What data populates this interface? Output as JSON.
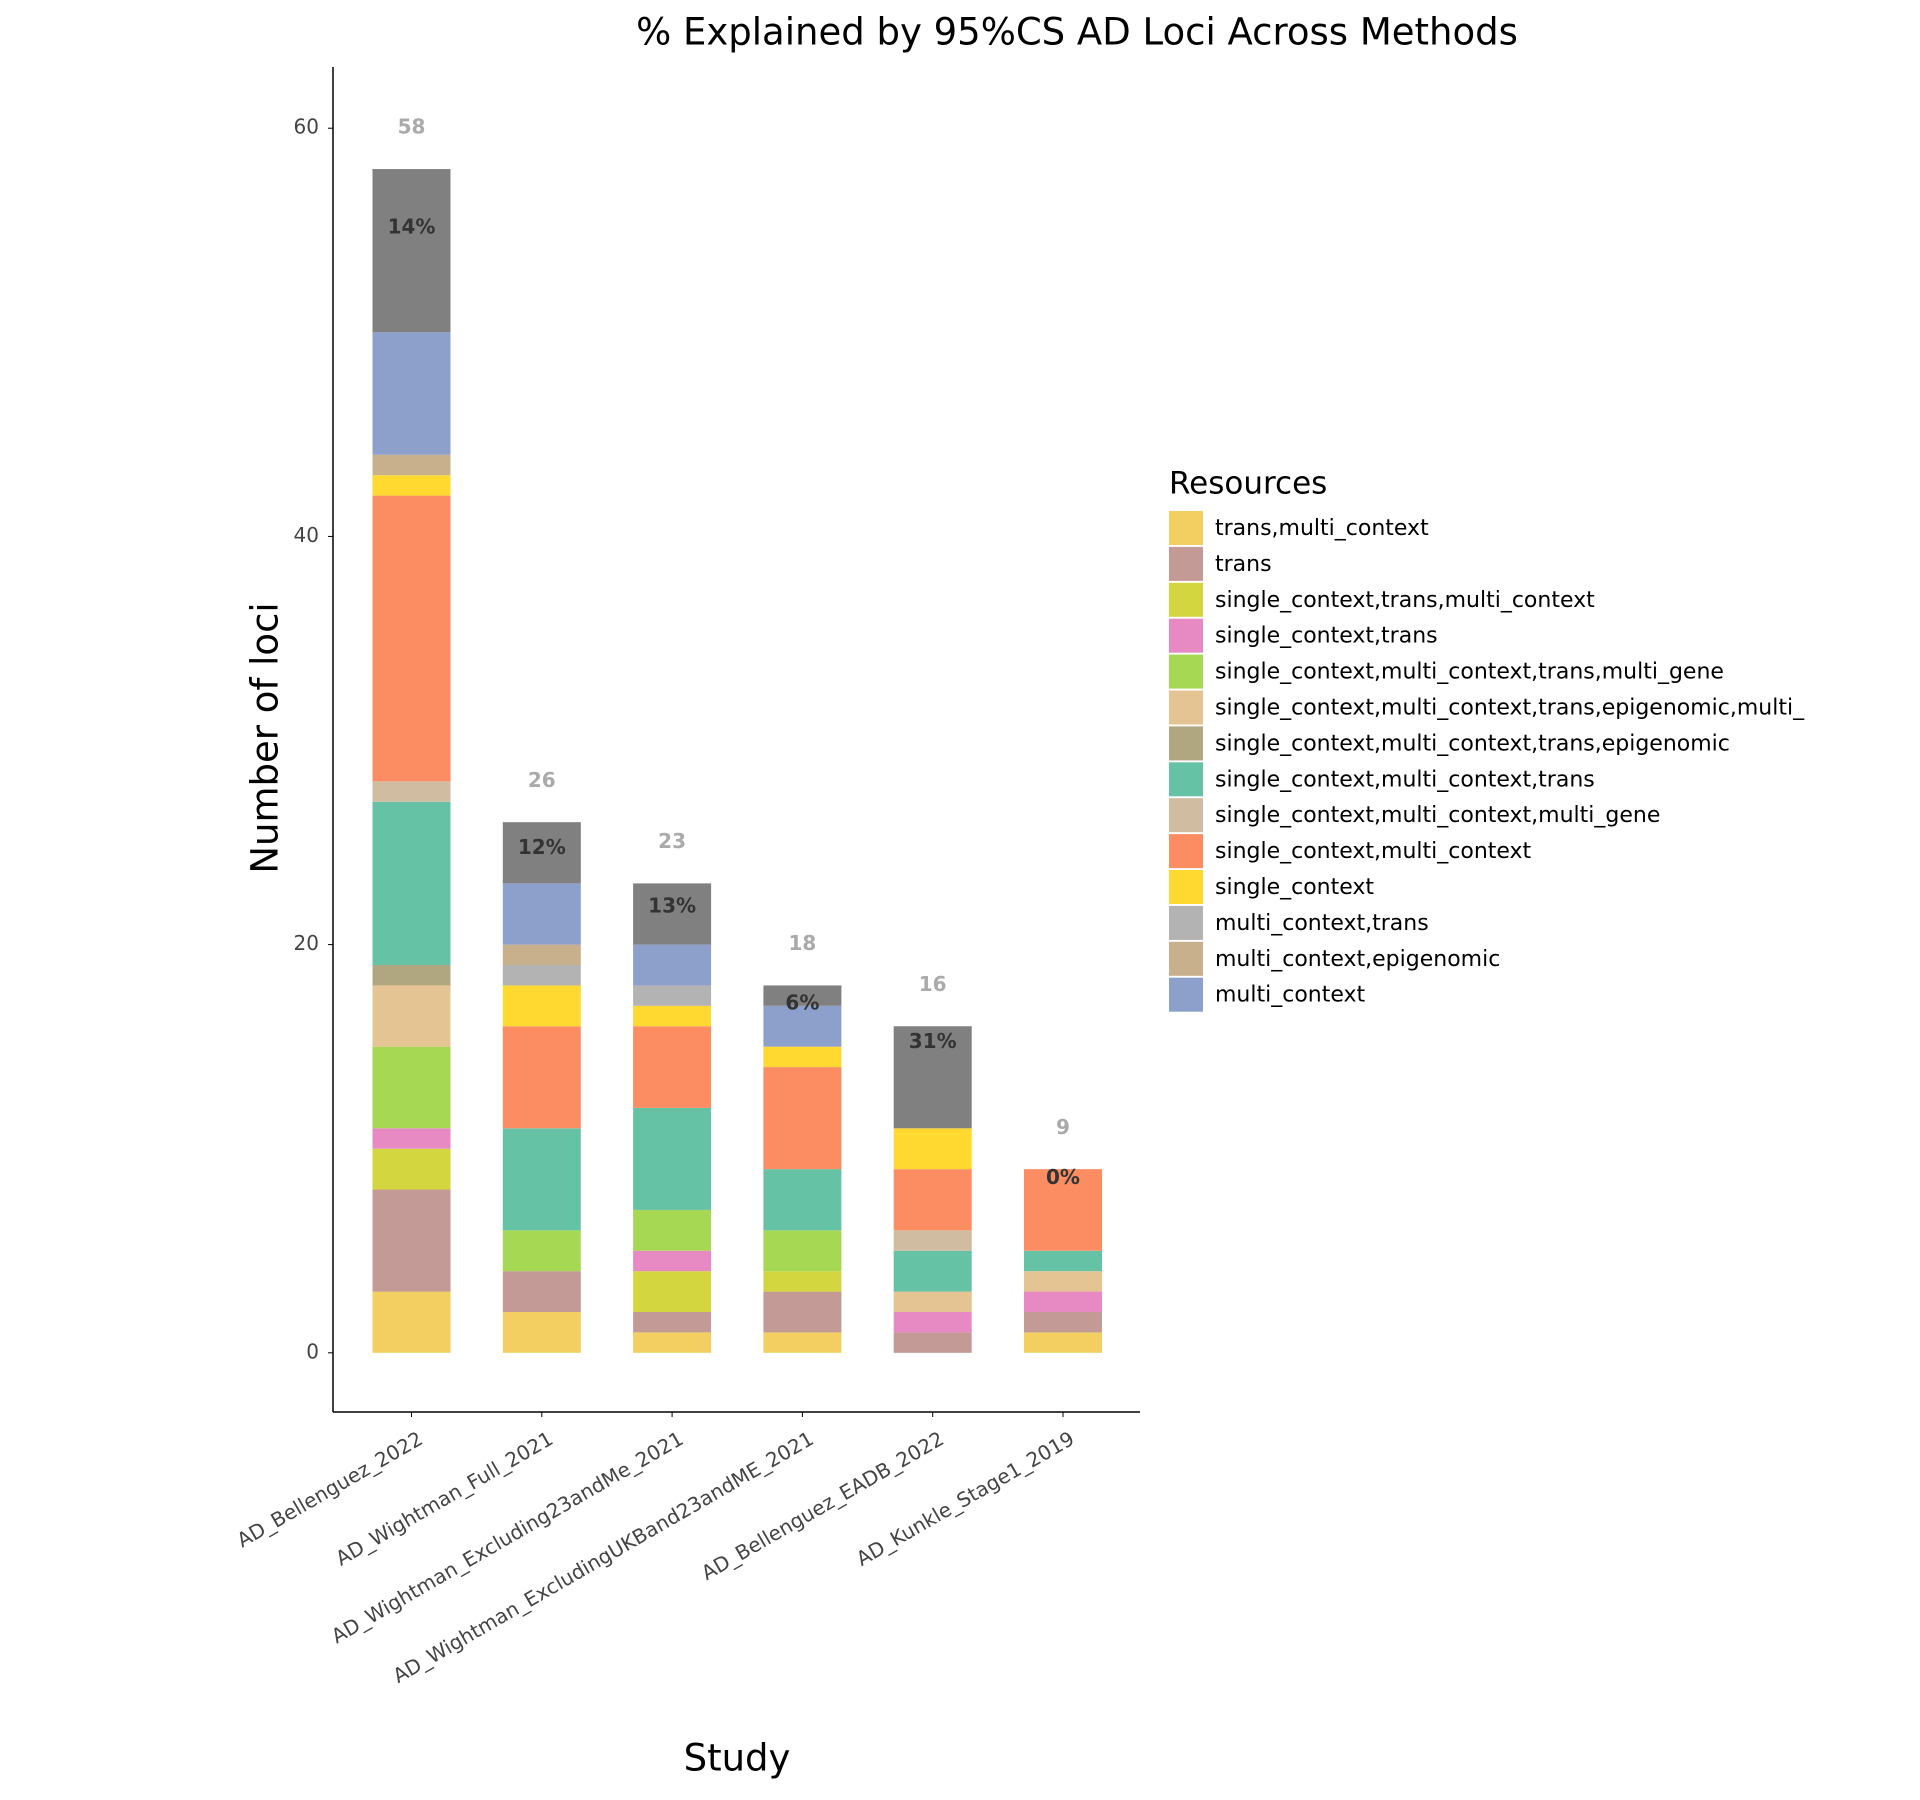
{
  "chart_data": {
    "type": "stacked-bar",
    "title": "% Explained by 95%CS AD Loci Across Methods",
    "x_label": "Study",
    "y_label": "Number of loci",
    "legend_title": "Resources",
    "categories": [
      "AD_Bellenguez_2022",
      "AD_Wightman_Full_2021",
      "AD_Wightman_Excluding23andMe_2021",
      "AD_Wightman_ExcludingUKBand23andME_2021",
      "AD_Bellenguez_EADB_2022",
      "AD_Kunkle_Stage1_2019"
    ],
    "ylim": [
      -2.9,
      63
    ],
    "yticks": [
      0,
      20,
      40,
      60
    ],
    "series": [
      {
        "name": "trans,multi_context",
        "color": "#f2cf60",
        "values": [
          3,
          2,
          1,
          1,
          0,
          1
        ]
      },
      {
        "name": "trans",
        "color": "#c49a96",
        "values": [
          5,
          2,
          1,
          2,
          1,
          1
        ]
      },
      {
        "name": "single_context,trans,multi_context",
        "color": "#d4d640",
        "values": [
          2,
          0,
          2,
          1,
          0,
          0
        ]
      },
      {
        "name": "single_context,trans",
        "color": "#e78ac3",
        "values": [
          1,
          0,
          1,
          0,
          1,
          1
        ]
      },
      {
        "name": "single_context,multi_context,trans,multi_gene",
        "color": "#a6d854",
        "values": [
          4,
          2,
          2,
          2,
          0,
          0
        ]
      },
      {
        "name": "single_context,multi_context,trans,epigenomic,multi_",
        "color": "#e5c494",
        "values": [
          3,
          0,
          0,
          0,
          1,
          1
        ]
      },
      {
        "name": "single_context,multi_context,trans,epigenomic",
        "color": "#b0a680",
        "values": [
          1,
          0,
          0,
          0,
          0,
          0
        ]
      },
      {
        "name": "single_context,multi_context,trans",
        "color": "#66c2a5",
        "values": [
          8,
          5,
          5,
          3,
          2,
          1
        ]
      },
      {
        "name": "single_context,multi_context,multi_gene",
        "color": "#d0bca0",
        "values": [
          1,
          0,
          0,
          0,
          1,
          0
        ]
      },
      {
        "name": "single_context,multi_context",
        "color": "#fc8d62",
        "values": [
          14,
          5,
          4,
          5,
          3,
          4
        ]
      },
      {
        "name": "single_context",
        "color": "#ffd92f",
        "values": [
          1,
          2,
          1,
          1,
          2,
          0
        ]
      },
      {
        "name": "multi_context,trans",
        "color": "#b3b3b3",
        "values": [
          0,
          1,
          1,
          0,
          0,
          0
        ]
      },
      {
        "name": "multi_context,epigenomic",
        "color": "#c8b08c",
        "values": [
          1,
          1,
          0,
          0,
          0,
          0
        ]
      },
      {
        "name": "multi_context",
        "color": "#8da0cb",
        "values": [
          6,
          3,
          2,
          2,
          0,
          0
        ]
      },
      {
        "color": "#808080",
        "values": [
          8,
          3,
          3,
          1,
          5,
          0
        ]
      }
    ],
    "totals": {
      "color": "#aaaaaa",
      "values": [
        58,
        26,
        23,
        18,
        16,
        9
      ]
    },
    "explained": {
      "color": "#333333",
      "values": [
        14,
        12,
        13,
        6,
        31,
        0
      ],
      "value_labels": [
        "14%",
        "12%",
        "13%",
        "6%",
        "31%",
        "0%"
      ]
    }
  }
}
